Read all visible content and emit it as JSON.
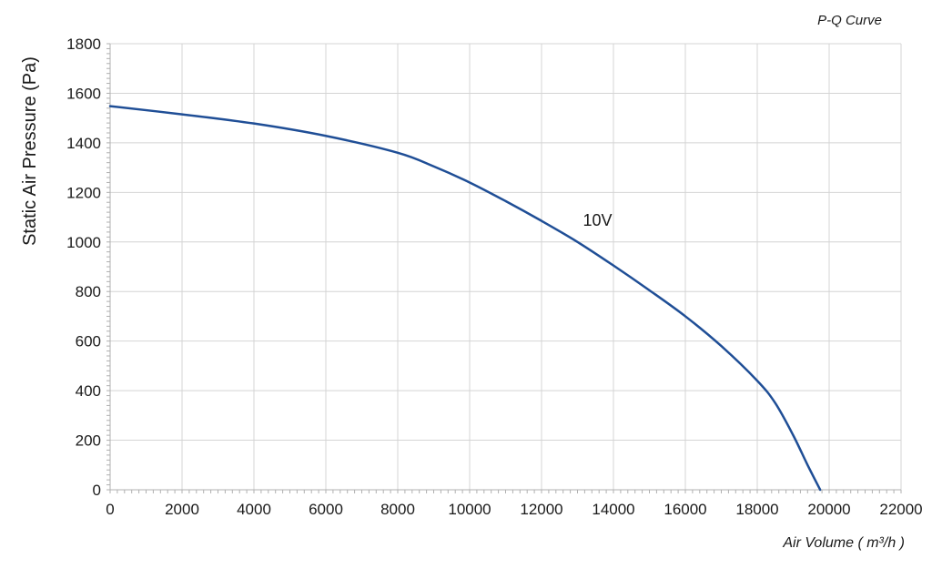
{
  "chart_data": {
    "type": "line",
    "title": "P-Q Curve",
    "xlabel": "Air Volume ( m³/h )",
    "ylabel": "Static Air Pressure  (Pa)",
    "xlim": [
      0,
      22000
    ],
    "ylim": [
      0,
      1800
    ],
    "xticks": [
      0,
      2000,
      4000,
      6000,
      8000,
      10000,
      12000,
      14000,
      16000,
      18000,
      20000,
      22000
    ],
    "yticks": [
      0,
      200,
      400,
      600,
      800,
      1000,
      1200,
      1400,
      1600,
      1800
    ],
    "grid": true,
    "series": [
      {
        "name": "10V",
        "color": "#1f4e96",
        "x": [
          0,
          2000,
          4000,
          6000,
          8000,
          9000,
          10000,
          11000,
          12000,
          13000,
          14000,
          15000,
          16000,
          17000,
          18000,
          18500,
          19000,
          19400,
          19750
        ],
        "y": [
          1548,
          1515,
          1478,
          1428,
          1360,
          1305,
          1240,
          1165,
          1085,
          1000,
          905,
          805,
          700,
          580,
          440,
          350,
          220,
          100,
          0
        ]
      }
    ],
    "annotations": [
      {
        "text": "10V",
        "x": 13000,
        "y": 1050
      }
    ]
  }
}
